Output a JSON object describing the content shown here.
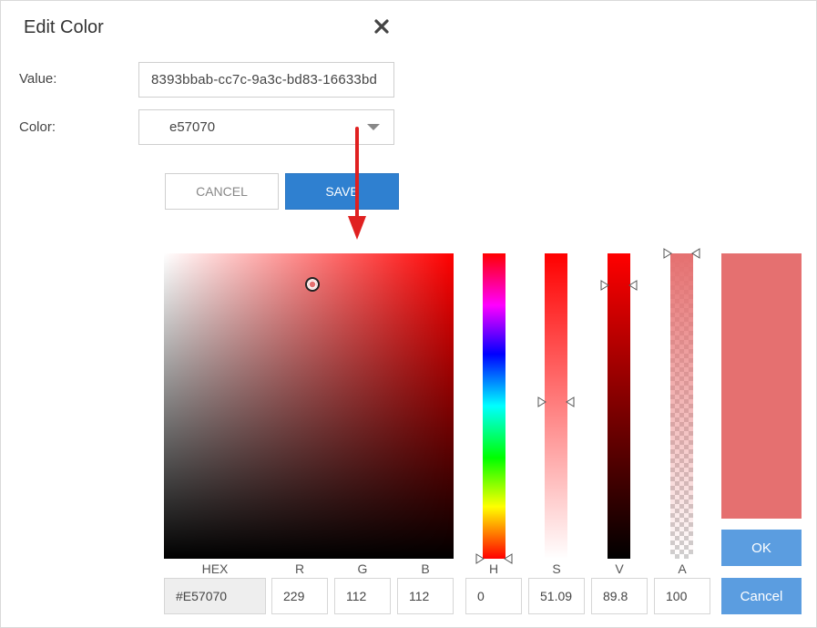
{
  "dialog": {
    "title": "Edit Color",
    "value_label": "Value:",
    "value": "8393bbab-cc7c-9a3c-bd83-16633bd",
    "color_label": "Color:",
    "color_value": "e57070",
    "cancel_label": "CANCEL",
    "save_label": "SAVE"
  },
  "picker": {
    "labels": {
      "hex": "HEX",
      "r": "R",
      "g": "G",
      "b": "B",
      "h": "H",
      "s": "S",
      "v": "V",
      "a": "A"
    },
    "values": {
      "hex": "#E57070",
      "r": "229",
      "g": "112",
      "b": "112",
      "h": "0",
      "s": "51.09",
      "v": "89.8",
      "a": "100"
    },
    "ok_label": "OK",
    "cancel_label": "Cancel",
    "preview_color": "#e57070"
  },
  "colors": {
    "accent": "#2f80d0",
    "picker_button": "#5b9de0",
    "annotation_arrow": "#e02020"
  }
}
